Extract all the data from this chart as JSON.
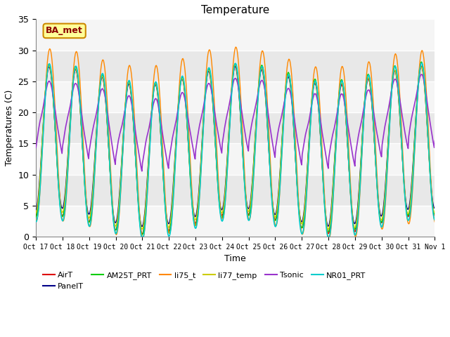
{
  "title": "Temperature",
  "xlabel": "Time",
  "ylabel": "Temperatures (C)",
  "ylim": [
    0,
    35
  ],
  "xlim": [
    0,
    15
  ],
  "n_days": 15,
  "series_order": [
    "AirT",
    "PanelT",
    "AM25T_PRT",
    "li75_t",
    "li77_temp",
    "Tsonic",
    "NR01_PRT"
  ],
  "series": {
    "AirT": {
      "color": "#dd0000",
      "lw": 1.0
    },
    "PanelT": {
      "color": "#000088",
      "lw": 1.0
    },
    "AM25T_PRT": {
      "color": "#00cc00",
      "lw": 1.0
    },
    "li75_t": {
      "color": "#ff8800",
      "lw": 1.0
    },
    "li77_temp": {
      "color": "#cccc00",
      "lw": 1.0
    },
    "Tsonic": {
      "color": "#9933cc",
      "lw": 1.2
    },
    "NR01_PRT": {
      "color": "#00cccc",
      "lw": 1.2
    }
  },
  "xtick_labels": [
    "Oct 17",
    "Oct 18",
    "Oct 19",
    "Oct 20",
    "Oct 21",
    "Oct 22",
    "Oct 23",
    "Oct 24",
    "Oct 25",
    "Oct 26",
    "Oct 27",
    "Oct 28",
    "Oct 29",
    "Oct 30",
    "Oct 31",
    "Nov 1"
  ],
  "yticks": [
    0,
    5,
    10,
    15,
    20,
    25,
    30,
    35
  ],
  "annotation_text": "BA_met",
  "fig_bg": "#ffffff",
  "plot_bg": "#e8e8e8",
  "band_color": "#d0d0d0",
  "grid_color": "#ffffff"
}
